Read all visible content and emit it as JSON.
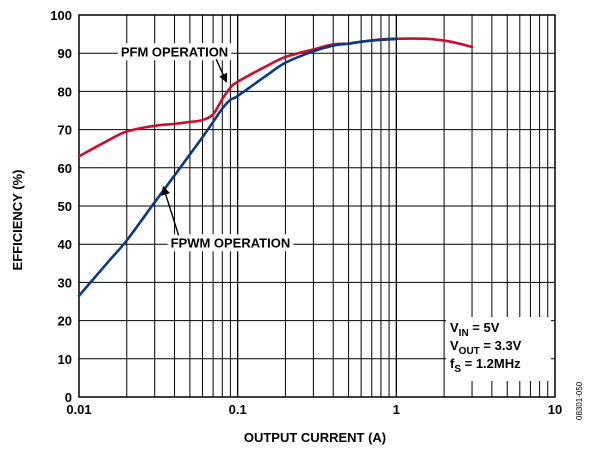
{
  "chart_data": {
    "type": "line",
    "x_scale": "log",
    "xlim": [
      0.01,
      10
    ],
    "ylim": [
      0,
      100
    ],
    "grid": true,
    "xlabel": "OUTPUT CURRENT (A)",
    "ylabel": "EFFICIENCY (%)",
    "x_tick_labels": [
      "0.01",
      "0.1",
      "1",
      "10"
    ],
    "x_ticks": [
      0.01,
      0.1,
      1,
      10
    ],
    "y_ticks": [
      0,
      10,
      20,
      30,
      40,
      50,
      60,
      70,
      80,
      90,
      100
    ],
    "y_tick_labels": [
      "0",
      "10",
      "20",
      "30",
      "40",
      "50",
      "60",
      "70",
      "80",
      "90",
      "100"
    ],
    "series": [
      {
        "color": "#c8102e",
        "x": [
          0.01,
          0.015,
          0.02,
          0.03,
          0.04,
          0.05,
          0.06,
          0.07,
          0.08,
          0.09,
          0.1,
          0.15,
          0.2,
          0.3,
          0.4,
          0.5,
          0.6,
          0.8,
          1.0,
          1.5,
          2.0,
          2.5,
          3.0
        ],
        "y": [
          63,
          67,
          69.5,
          71,
          71.5,
          72,
          72.5,
          74,
          78,
          81,
          82.5,
          86.5,
          89,
          91,
          92.3,
          92.5,
          93,
          93.6,
          93.8,
          93.8,
          93.3,
          92.5,
          91.6
        ]
      },
      {
        "color": "#0b3a7e",
        "x": [
          0.01,
          0.015,
          0.02,
          0.03,
          0.04,
          0.05,
          0.06,
          0.07,
          0.08,
          0.09,
          0.1,
          0.15,
          0.2,
          0.3,
          0.4,
          0.5,
          0.6,
          0.8,
          1.0
        ],
        "y": [
          26.5,
          35,
          41,
          51,
          58,
          63.5,
          68,
          72,
          75.5,
          77.8,
          78.8,
          84,
          87.5,
          90.5,
          92,
          92.5,
          93,
          93.5,
          93.7
        ]
      }
    ],
    "annotations": [
      {
        "text": "PFM OPERATION",
        "x": 0.04,
        "y": 90.5,
        "arrow_to": {
          "x": 0.085,
          "y": 82.5
        }
      },
      {
        "text": "FPWM OPERATION",
        "x": 0.09,
        "y": 40.5,
        "arrow_to": {
          "x": 0.034,
          "y": 55
        }
      }
    ],
    "conditions": [
      {
        "symbol": "V",
        "sub": "IN",
        "value": " = 5V"
      },
      {
        "symbol": "V",
        "sub": "OUT",
        "value": " = 3.3V"
      },
      {
        "symbol": "f",
        "sub": "S",
        "value": " = 1.2MHz"
      }
    ],
    "figure_id": "08301-050"
  }
}
